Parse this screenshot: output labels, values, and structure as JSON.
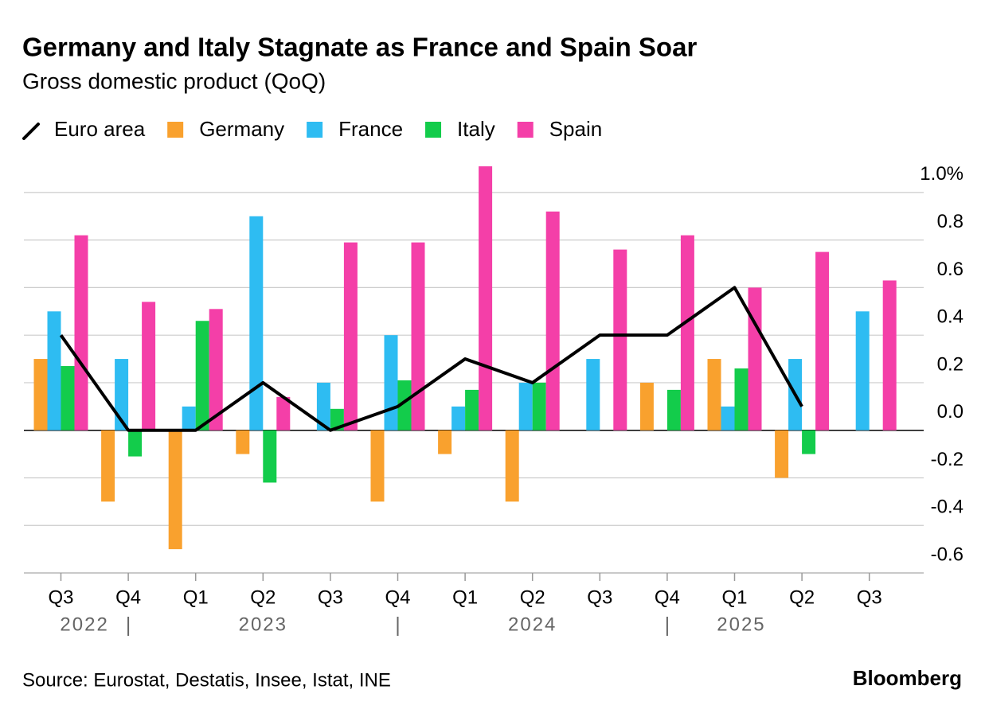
{
  "chart_data": {
    "type": "bar",
    "title": "Germany and Italy Stagnate as France and Spain Soar",
    "subtitle": "Gross domestic product (QoQ)",
    "categories": [
      "Q3",
      "Q4",
      "Q1",
      "Q2",
      "Q3",
      "Q4",
      "Q1",
      "Q2",
      "Q3",
      "Q4",
      "Q1",
      "Q2",
      "Q3"
    ],
    "year_labels": [
      "2022",
      "2023",
      "2024",
      "2025"
    ],
    "series": [
      {
        "name": "Euro area",
        "type": "line",
        "color": "#000000",
        "values": [
          0.4,
          0.0,
          0.0,
          0.2,
          0.0,
          0.1,
          0.3,
          0.2,
          0.4,
          0.4,
          0.6,
          0.1,
          null
        ]
      },
      {
        "name": "Germany",
        "type": "bar",
        "color": "#f9a12e",
        "values": [
          0.3,
          -0.3,
          -0.5,
          -0.1,
          0.0,
          -0.3,
          -0.1,
          -0.3,
          0.0,
          0.2,
          0.3,
          -0.2,
          null
        ]
      },
      {
        "name": "France",
        "type": "bar",
        "color": "#2ebcf2",
        "values": [
          0.5,
          0.3,
          0.1,
          0.9,
          0.2,
          0.4,
          0.1,
          0.2,
          0.3,
          0.0,
          0.1,
          0.3,
          0.5
        ]
      },
      {
        "name": "Italy",
        "type": "bar",
        "color": "#13cc4b",
        "values": [
          0.27,
          -0.11,
          0.46,
          -0.22,
          0.09,
          0.21,
          0.17,
          0.2,
          0.0,
          0.17,
          0.26,
          -0.1,
          null
        ]
      },
      {
        "name": "Spain",
        "type": "bar",
        "color": "#f43fa8",
        "values": [
          0.82,
          0.54,
          0.51,
          0.14,
          0.79,
          0.79,
          1.11,
          0.92,
          0.76,
          0.82,
          0.6,
          0.75,
          0.63
        ]
      }
    ],
    "ylim": [
      -0.6,
      1.1
    ],
    "yticks": [
      -0.6,
      -0.4,
      -0.2,
      {
        "value": 0,
        "label": "0.0"
      },
      0.2,
      0.4,
      0.6,
      0.8,
      {
        "value": 1,
        "label": "1.0%"
      }
    ],
    "grid": true,
    "source": "Source: Eurostat, Destatis, Insee, Istat, INE",
    "brand": "Bloomberg"
  }
}
